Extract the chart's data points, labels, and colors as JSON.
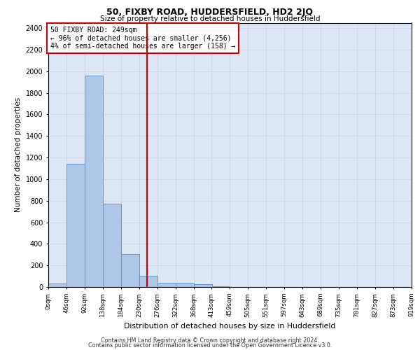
{
  "title1": "50, FIXBY ROAD, HUDDERSFIELD, HD2 2JQ",
  "title2": "Size of property relative to detached houses in Huddersfield",
  "xlabel": "Distribution of detached houses by size in Huddersfield",
  "ylabel": "Number of detached properties",
  "footer1": "Contains HM Land Registry data © Crown copyright and database right 2024.",
  "footer2": "Contains public sector information licensed under the Open Government Licence v3.0.",
  "annotation_line1": "50 FIXBY ROAD: 249sqm",
  "annotation_line2": "← 96% of detached houses are smaller (4,256)",
  "annotation_line3": "4% of semi-detached houses are larger (158) →",
  "property_sqm": 249,
  "bin_edges": [
    0,
    46,
    92,
    138,
    184,
    230,
    276,
    322,
    368,
    413,
    459,
    505,
    551,
    597,
    643,
    689,
    735,
    781,
    827,
    873,
    919
  ],
  "bar_heights": [
    30,
    1140,
    1960,
    775,
    305,
    105,
    42,
    38,
    25,
    5,
    0,
    0,
    0,
    0,
    0,
    0,
    0,
    0,
    0,
    0
  ],
  "bar_color": "#aec6e8",
  "bar_edge_color": "#5b9bd5",
  "vline_color": "#cc0000",
  "vline_x": 249,
  "annotation_box_edge_color": "#cc0000",
  "grid_color": "#ccd6e8",
  "bg_color": "#dce6f5",
  "ylim": [
    0,
    2450
  ],
  "yticks": [
    0,
    200,
    400,
    600,
    800,
    1000,
    1200,
    1400,
    1600,
    1800,
    2000,
    2200,
    2400
  ]
}
